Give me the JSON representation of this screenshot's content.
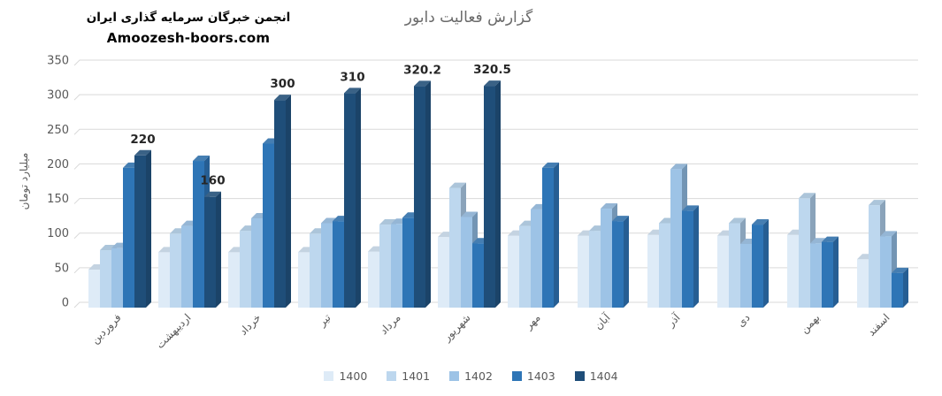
{
  "header": {
    "org_name": "انجمن خبرگان سرمایه گذاری ایران",
    "site": "Amoozesh-boors.com"
  },
  "chart_data": {
    "type": "bar",
    "title": "گزارش فعالیت دابور",
    "xlabel": "",
    "ylabel": "میلیارد تومان",
    "ylim": [
      0,
      350
    ],
    "ytick_step": 50,
    "grid": true,
    "style": "3d-extruded-bars",
    "legend_position": "bottom",
    "categories": [
      "فروردین",
      "اردیبهشت",
      "خرداد",
      "تیر",
      "مرداد",
      "شهریور",
      "مهر",
      "آبان",
      "آذر",
      "دی",
      "بهمن",
      "اسفند"
    ],
    "series": [
      {
        "name": "1400",
        "color": "#DEEBF7",
        "values": [
          55,
          80,
          80,
          80,
          81,
          102,
          104,
          104,
          105,
          104,
          105,
          70
        ]
      },
      {
        "name": "1401",
        "color": "#BDD7EE",
        "values": [
          83,
          107,
          111,
          107,
          120,
          173,
          118,
          111,
          122,
          122,
          158,
          148
        ]
      },
      {
        "name": "1402",
        "color": "#9DC3E6",
        "values": [
          86,
          118,
          129,
          122,
          121,
          131,
          142,
          143,
          200,
          92,
          93,
          103
        ]
      },
      {
        "name": "1403",
        "color": "#2E75B6",
        "values": [
          202,
          212,
          237,
          125,
          130,
          93,
          202,
          125,
          140,
          120,
          95,
          50
        ]
      },
      {
        "name": "1404",
        "color": "#1F4E79",
        "values": [
          220,
          160,
          300,
          310,
          320.2,
          320.5,
          null,
          null,
          null,
          null,
          null,
          null
        ],
        "data_labels": true
      }
    ],
    "shown_data_labels": [
      "220",
      "160",
      "300",
      "310",
      "320.2",
      "320.5"
    ],
    "colors": {
      "grid": "#D9D9D9",
      "axis_text": "#595959",
      "title_text": "#6A6A6A",
      "data_label": "#262626",
      "background": "#FFFFFF"
    }
  }
}
